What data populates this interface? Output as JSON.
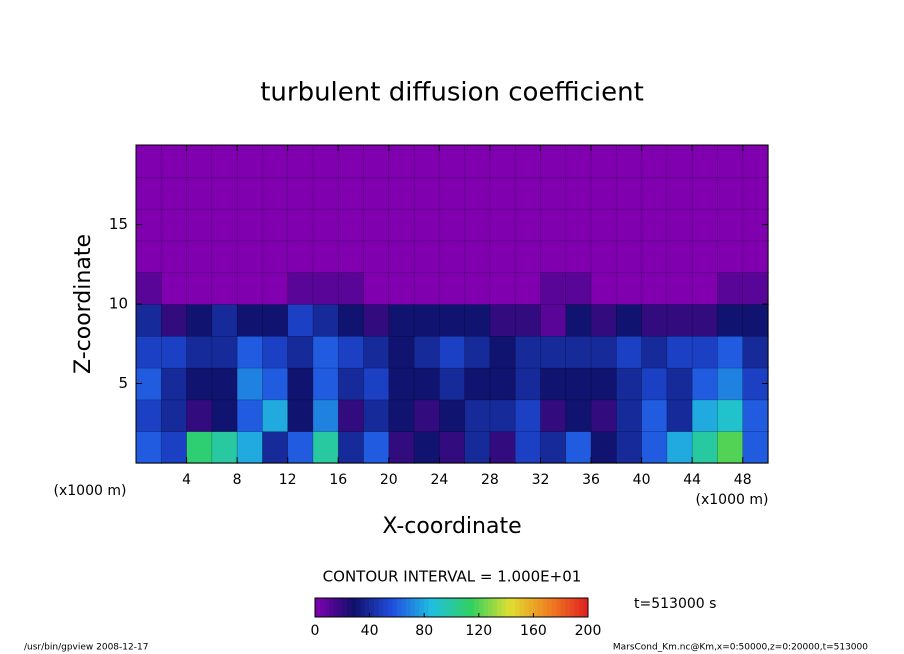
{
  "chart_data": {
    "type": "contour",
    "title": "turbulent diffusion coefficient",
    "xlabel": "X-coordinate",
    "ylabel": "Z-coordinate",
    "x_unit_label": "(x1000 m)",
    "xlim": [
      0,
      50
    ],
    "ylim": [
      0,
      20
    ],
    "xticks": [
      4,
      8,
      12,
      16,
      20,
      24,
      28,
      32,
      36,
      40,
      44,
      48
    ],
    "yticks": [
      5,
      10,
      15
    ],
    "x": [
      1,
      3,
      5,
      7,
      9,
      11,
      13,
      15,
      17,
      19,
      21,
      23,
      25,
      27,
      29,
      31,
      33,
      35,
      37,
      39,
      41,
      43,
      45,
      47,
      49
    ],
    "y": [
      1,
      3,
      5,
      7,
      9,
      11,
      13,
      15,
      17,
      19
    ],
    "z": [
      [
        60,
        50,
        110,
        100,
        80,
        40,
        60,
        100,
        40,
        60,
        20,
        30,
        20,
        40,
        20,
        50,
        40,
        60,
        30,
        40,
        60,
        80,
        100,
        120,
        60
      ],
      [
        50,
        40,
        20,
        30,
        60,
        80,
        30,
        70,
        20,
        40,
        30,
        20,
        30,
        40,
        40,
        50,
        20,
        30,
        20,
        40,
        60,
        40,
        80,
        90,
        60
      ],
      [
        60,
        40,
        30,
        30,
        70,
        60,
        30,
        60,
        40,
        50,
        30,
        30,
        40,
        30,
        30,
        40,
        30,
        30,
        30,
        40,
        50,
        40,
        60,
        70,
        50
      ],
      [
        50,
        50,
        40,
        40,
        60,
        50,
        40,
        60,
        50,
        40,
        30,
        40,
        50,
        40,
        30,
        40,
        40,
        40,
        40,
        50,
        40,
        50,
        50,
        60,
        40
      ],
      [
        40,
        20,
        30,
        40,
        30,
        30,
        50,
        40,
        30,
        20,
        30,
        30,
        30,
        30,
        20,
        20,
        10,
        30,
        20,
        30,
        20,
        20,
        20,
        30,
        30
      ],
      [
        10,
        0,
        0,
        0,
        0,
        0,
        10,
        10,
        10,
        0,
        0,
        0,
        0,
        0,
        0,
        0,
        10,
        10,
        0,
        0,
        0,
        0,
        0,
        10,
        10
      ],
      [
        0,
        0,
        0,
        0,
        0,
        0,
        0,
        0,
        0,
        0,
        0,
        0,
        0,
        0,
        0,
        0,
        0,
        0,
        0,
        0,
        0,
        0,
        0,
        0,
        0
      ],
      [
        0,
        0,
        0,
        0,
        0,
        0,
        0,
        0,
        0,
        0,
        0,
        0,
        0,
        0,
        0,
        0,
        0,
        0,
        0,
        0,
        0,
        0,
        0,
        0,
        0
      ],
      [
        0,
        0,
        0,
        0,
        0,
        0,
        0,
        0,
        0,
        0,
        0,
        0,
        0,
        0,
        0,
        0,
        0,
        0,
        0,
        0,
        0,
        0,
        0,
        0,
        0
      ],
      [
        0,
        0,
        0,
        0,
        0,
        0,
        0,
        0,
        0,
        0,
        0,
        0,
        0,
        0,
        0,
        0,
        0,
        0,
        0,
        0,
        0,
        0,
        0,
        0,
        0
      ]
    ],
    "colorscale": [
      "#8000b0",
      "#10106a",
      "#2050e0",
      "#20c0e0",
      "#30d060",
      "#e0e030",
      "#f08020",
      "#e02020"
    ],
    "clim": [
      0,
      200
    ],
    "colorbar_ticks": [
      0,
      40,
      80,
      120,
      160,
      200
    ],
    "contour_interval_label": "CONTOUR INTERVAL = 1.000E+01",
    "time_label": "t=513000 s",
    "footer_left": "/usr/bin/gpview   2008-12-17",
    "footer_right": "MarsCond_Km.nc@Km,x=0:50000,z=0:20000,t=513000"
  }
}
